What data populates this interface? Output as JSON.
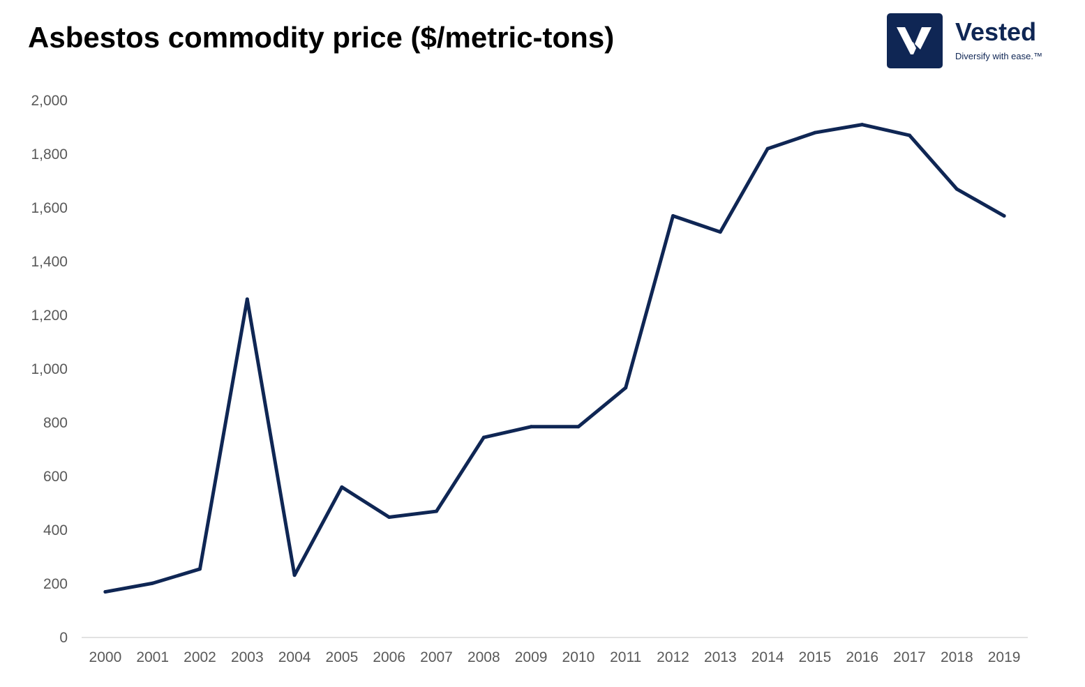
{
  "brand": {
    "name": "Vested",
    "tagline": "Diversify with ease.™",
    "logo_icon": "vested-v-logo-icon",
    "color": "#0f2654"
  },
  "chart_data": {
    "type": "line",
    "title": "Asbestos commodity price ($/metric-tons)",
    "xlabel": "",
    "ylabel": "",
    "ylim": [
      0,
      2000
    ],
    "yticks": [
      0,
      200,
      400,
      600,
      800,
      1000,
      1200,
      1400,
      1600,
      1800,
      2000
    ],
    "ytick_labels": [
      "0",
      "200",
      "400",
      "600",
      "800",
      "1,000",
      "1,200",
      "1,400",
      "1,600",
      "1,800",
      "2,000"
    ],
    "grid": false,
    "legend": "none",
    "line_color": "#0f2654",
    "categories": [
      "2000",
      "2001",
      "2002",
      "2003",
      "2004",
      "2005",
      "2006",
      "2007",
      "2008",
      "2009",
      "2010",
      "2011",
      "2012",
      "2013",
      "2014",
      "2015",
      "2016",
      "2017",
      "2018",
      "2019"
    ],
    "series": [
      {
        "values": [
          170,
          202,
          255,
          1260,
          232,
          560,
          448,
          470,
          745,
          785,
          785,
          930,
          1570,
          1510,
          1820,
          1880,
          1910,
          1870,
          1670,
          1570
        ]
      }
    ]
  }
}
